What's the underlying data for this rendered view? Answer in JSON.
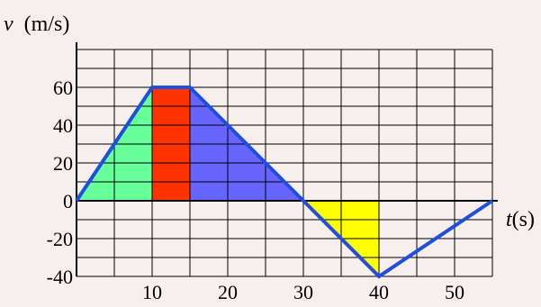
{
  "chart_data": {
    "type": "line",
    "xlabel": "t(s)",
    "ylabel": "(m/s)",
    "ylabel_var": "v",
    "xlim": [
      0,
      55
    ],
    "ylim": [
      -40,
      80
    ],
    "grid": true,
    "x_ticks": [
      10,
      20,
      30,
      40,
      50
    ],
    "x_tick_labels": [
      "10",
      "20",
      "30",
      "40",
      "50"
    ],
    "y_ticks": [
      60,
      40,
      20,
      0,
      -20,
      -40
    ],
    "y_tick_labels": [
      "60",
      "40",
      "20",
      "0",
      "-20",
      "-40"
    ],
    "series": [
      {
        "x": [
          0,
          10,
          15,
          30,
          40,
          55
        ],
        "y": [
          0,
          60,
          60,
          0,
          -40,
          0
        ]
      }
    ],
    "shaded_regions": [
      {
        "x": [
          0,
          10
        ],
        "color": "#66ff99"
      },
      {
        "x": [
          10,
          15
        ],
        "color": "#ff3300"
      },
      {
        "x": [
          15,
          30
        ],
        "color": "#6666ff"
      },
      {
        "x": [
          30,
          40
        ],
        "color": "#ffff00"
      }
    ],
    "line_color": "#1f4fe0"
  }
}
